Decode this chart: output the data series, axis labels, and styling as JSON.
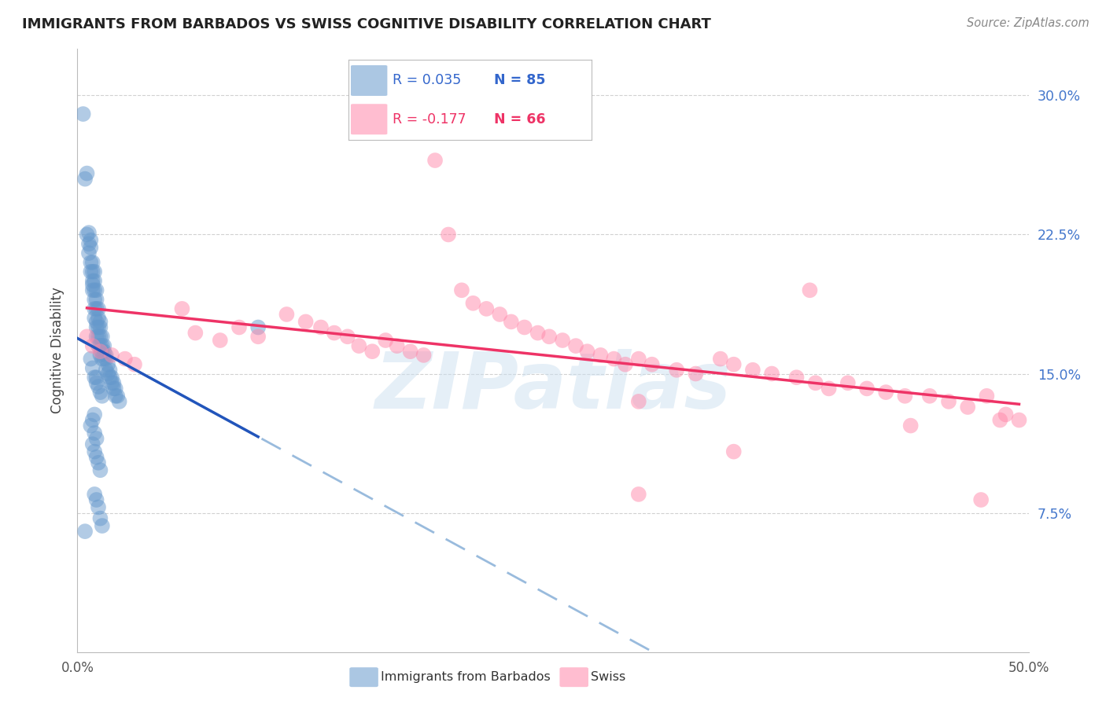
{
  "title": "IMMIGRANTS FROM BARBADOS VS SWISS COGNITIVE DISABILITY CORRELATION CHART",
  "source": "Source: ZipAtlas.com",
  "ylabel": "Cognitive Disability",
  "xlim": [
    0.0,
    0.5
  ],
  "ylim": [
    0.0,
    0.325
  ],
  "grid_color": "#cccccc",
  "background_color": "#ffffff",
  "blue_color": "#6699cc",
  "pink_color": "#ff88aa",
  "blue_line_color": "#2255bb",
  "pink_line_color": "#ee3366",
  "blue_dashed_color": "#99bbdd",
  "legend_R_blue": "0.035",
  "legend_N_blue": "85",
  "legend_R_pink": "-0.177",
  "legend_N_pink": "66",
  "legend_label_blue": "Immigrants from Barbados",
  "legend_label_pink": "Swiss",
  "watermark": "ZIPatlas",
  "blue_x": [
    0.003,
    0.004,
    0.005,
    0.005,
    0.006,
    0.006,
    0.006,
    0.007,
    0.007,
    0.007,
    0.007,
    0.008,
    0.008,
    0.008,
    0.008,
    0.008,
    0.009,
    0.009,
    0.009,
    0.009,
    0.009,
    0.009,
    0.01,
    0.01,
    0.01,
    0.01,
    0.01,
    0.01,
    0.011,
    0.011,
    0.011,
    0.011,
    0.011,
    0.012,
    0.012,
    0.012,
    0.012,
    0.012,
    0.013,
    0.013,
    0.013,
    0.013,
    0.014,
    0.014,
    0.014,
    0.015,
    0.015,
    0.015,
    0.016,
    0.016,
    0.017,
    0.017,
    0.018,
    0.018,
    0.019,
    0.019,
    0.02,
    0.02,
    0.021,
    0.022,
    0.007,
    0.008,
    0.009,
    0.01,
    0.01,
    0.011,
    0.012,
    0.013,
    0.009,
    0.008,
    0.007,
    0.009,
    0.01,
    0.008,
    0.009,
    0.01,
    0.011,
    0.012,
    0.009,
    0.01,
    0.011,
    0.012,
    0.013,
    0.095,
    0.004
  ],
  "blue_y": [
    0.29,
    0.255,
    0.258,
    0.225,
    0.226,
    0.22,
    0.215,
    0.222,
    0.218,
    0.21,
    0.205,
    0.21,
    0.205,
    0.2,
    0.198,
    0.195,
    0.205,
    0.2,
    0.195,
    0.19,
    0.185,
    0.18,
    0.195,
    0.19,
    0.185,
    0.178,
    0.175,
    0.17,
    0.185,
    0.18,
    0.175,
    0.17,
    0.165,
    0.178,
    0.175,
    0.17,
    0.165,
    0.16,
    0.17,
    0.165,
    0.162,
    0.158,
    0.165,
    0.162,
    0.158,
    0.16,
    0.158,
    0.152,
    0.155,
    0.15,
    0.152,
    0.148,
    0.148,
    0.145,
    0.145,
    0.142,
    0.142,
    0.138,
    0.138,
    0.135,
    0.158,
    0.153,
    0.148,
    0.148,
    0.145,
    0.143,
    0.14,
    0.138,
    0.128,
    0.125,
    0.122,
    0.118,
    0.115,
    0.112,
    0.108,
    0.105,
    0.102,
    0.098,
    0.085,
    0.082,
    0.078,
    0.072,
    0.068,
    0.175,
    0.065
  ],
  "pink_x": [
    0.005,
    0.008,
    0.012,
    0.018,
    0.025,
    0.03,
    0.055,
    0.062,
    0.075,
    0.085,
    0.095,
    0.11,
    0.12,
    0.128,
    0.135,
    0.142,
    0.148,
    0.155,
    0.162,
    0.168,
    0.175,
    0.182,
    0.188,
    0.195,
    0.202,
    0.208,
    0.215,
    0.222,
    0.228,
    0.235,
    0.242,
    0.248,
    0.255,
    0.262,
    0.268,
    0.275,
    0.282,
    0.288,
    0.295,
    0.302,
    0.315,
    0.325,
    0.338,
    0.345,
    0.355,
    0.365,
    0.378,
    0.388,
    0.395,
    0.405,
    0.415,
    0.425,
    0.435,
    0.448,
    0.458,
    0.468,
    0.478,
    0.488,
    0.495,
    0.385,
    0.295,
    0.485,
    0.345,
    0.438,
    0.295,
    0.475
  ],
  "pink_y": [
    0.17,
    0.165,
    0.162,
    0.16,
    0.158,
    0.155,
    0.185,
    0.172,
    0.168,
    0.175,
    0.17,
    0.182,
    0.178,
    0.175,
    0.172,
    0.17,
    0.165,
    0.162,
    0.168,
    0.165,
    0.162,
    0.16,
    0.265,
    0.225,
    0.195,
    0.188,
    0.185,
    0.182,
    0.178,
    0.175,
    0.172,
    0.17,
    0.168,
    0.165,
    0.162,
    0.16,
    0.158,
    0.155,
    0.158,
    0.155,
    0.152,
    0.15,
    0.158,
    0.155,
    0.152,
    0.15,
    0.148,
    0.145,
    0.142,
    0.145,
    0.142,
    0.14,
    0.138,
    0.138,
    0.135,
    0.132,
    0.138,
    0.128,
    0.125,
    0.195,
    0.135,
    0.125,
    0.108,
    0.122,
    0.085,
    0.082
  ]
}
